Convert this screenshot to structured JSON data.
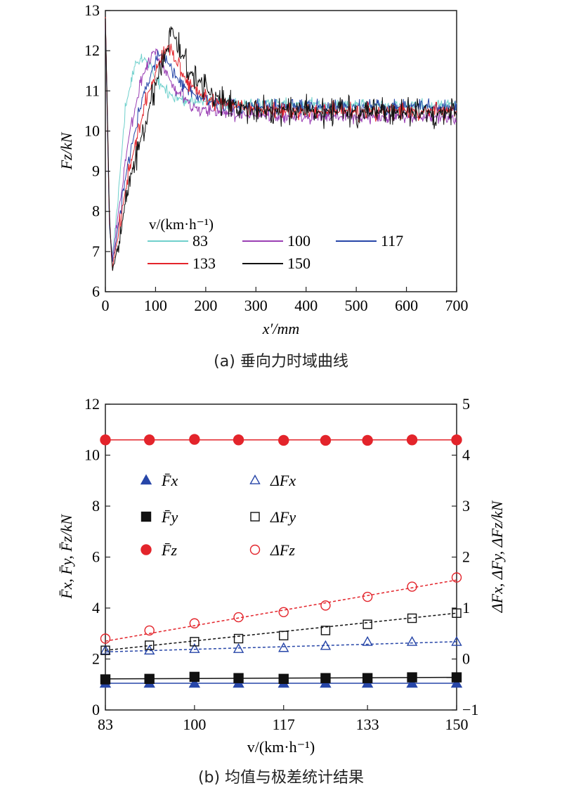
{
  "chart_data": [
    {
      "type": "line",
      "caption": "(a) 垂向力时域曲线",
      "xlabel": "x′/mm",
      "ylabel": "Fz/kN",
      "xlim": [
        0,
        700
      ],
      "ylim": [
        6,
        13
      ],
      "xticks": [
        "0",
        "100",
        "200",
        "300",
        "400",
        "500",
        "600",
        "700"
      ],
      "yticks": [
        "6",
        "7",
        "8",
        "9",
        "10",
        "11",
        "12",
        "13"
      ],
      "legend_title": "v/(km·h⁻¹)",
      "legend_placement": "lower-center",
      "grid": false,
      "series": [
        {
          "name": "83",
          "color": "#6fd0cc",
          "noise": 0.18,
          "x": [
            0,
            4,
            8,
            14,
            25,
            40,
            60,
            80,
            100,
            130,
            170,
            250,
            400,
            550,
            700
          ],
          "y": [
            12.8,
            10.2,
            7.6,
            6.9,
            8.3,
            10.6,
            11.7,
            11.8,
            11.3,
            10.9,
            10.75,
            10.7,
            10.7,
            10.65,
            10.65
          ]
        },
        {
          "name": "100",
          "color": "#9a3fb4",
          "noise": 0.2,
          "x": [
            0,
            4,
            8,
            14,
            25,
            45,
            70,
            95,
            110,
            140,
            180,
            260,
            400,
            550,
            700
          ],
          "y": [
            12.8,
            10.3,
            7.7,
            6.8,
            7.9,
            9.7,
            11.2,
            12.0,
            11.7,
            11.0,
            10.6,
            10.4,
            10.35,
            10.35,
            10.35
          ]
        },
        {
          "name": "117",
          "color": "#2746a8",
          "noise": 0.22,
          "x": [
            0,
            4,
            8,
            14,
            25,
            45,
            75,
            105,
            120,
            150,
            190,
            270,
            400,
            550,
            700
          ],
          "y": [
            12.8,
            10.3,
            7.7,
            6.7,
            7.6,
            9.2,
            10.9,
            11.9,
            11.8,
            11.2,
            10.8,
            10.6,
            10.6,
            10.6,
            10.6
          ]
        },
        {
          "name": "133",
          "color": "#e3242b",
          "noise": 0.28,
          "x": [
            0,
            4,
            8,
            14,
            25,
            45,
            80,
            110,
            125,
            160,
            200,
            280,
            400,
            550,
            700
          ],
          "y": [
            12.9,
            10.4,
            7.8,
            6.6,
            7.4,
            8.9,
            10.7,
            11.8,
            12.1,
            11.3,
            10.8,
            10.55,
            10.5,
            10.5,
            10.5
          ]
        },
        {
          "name": "150",
          "color": "#111111",
          "noise": 0.45,
          "x": [
            0,
            4,
            8,
            14,
            25,
            45,
            85,
            115,
            135,
            170,
            210,
            290,
            400,
            550,
            700
          ],
          "y": [
            12.8,
            10.5,
            7.9,
            6.5,
            7.1,
            8.6,
            10.5,
            11.8,
            12.4,
            11.5,
            10.9,
            10.5,
            10.5,
            10.45,
            10.45
          ]
        }
      ]
    },
    {
      "type": "scatter",
      "caption": "(b) 均值与极差统计结果",
      "xlabel": "v/(km·h⁻¹)",
      "ylabel_left": "F̄x, F̄y, F̄z/kN",
      "ylabel_right": "ΔFx, ΔFy, ΔFz/kN",
      "xlim": [
        83,
        150
      ],
      "ylim_left": [
        0,
        12
      ],
      "ylim_right": [
        -1,
        5
      ],
      "xticks": [
        "83",
        "100",
        "117",
        "133",
        "150"
      ],
      "yticks_left": [
        "0",
        "2",
        "4",
        "6",
        "8",
        "10",
        "12"
      ],
      "yticks_right": [
        "−1",
        "0",
        "1",
        "2",
        "3",
        "4",
        "5"
      ],
      "x": [
        83,
        91.4,
        100,
        108.4,
        117,
        125,
        133,
        141.5,
        150
      ],
      "legend_placement": "center-left",
      "series": [
        {
          "name": "F̄x",
          "marker": "triangle",
          "filled": true,
          "color": "#2746a8",
          "axis": "left",
          "values": [
            1.05,
            1.05,
            1.05,
            1.05,
            1.05,
            1.05,
            1.05,
            1.05,
            1.05
          ],
          "fit": [
            1.05,
            1.05
          ]
        },
        {
          "name": "F̄y",
          "marker": "square",
          "filled": true,
          "color": "#111111",
          "axis": "left",
          "values": [
            1.2,
            1.22,
            1.3,
            1.25,
            1.22,
            1.25,
            1.25,
            1.28,
            1.28
          ],
          "fit": [
            1.22,
            1.28
          ]
        },
        {
          "name": "F̄z",
          "marker": "circle",
          "filled": true,
          "color": "#e3242b",
          "axis": "left",
          "values": [
            10.6,
            10.6,
            10.62,
            10.6,
            10.58,
            10.58,
            10.58,
            10.6,
            10.6
          ],
          "fit": [
            10.6,
            10.6
          ]
        },
        {
          "name": "ΔFx",
          "marker": "triangle",
          "filled": false,
          "color": "#2746a8",
          "axis": "right",
          "values": [
            0.17,
            0.17,
            0.2,
            0.2,
            0.22,
            0.26,
            0.34,
            0.34,
            0.34
          ],
          "fit": [
            0.14,
            0.34
          ]
        },
        {
          "name": "ΔFy",
          "marker": "square",
          "filled": false,
          "color": "#111111",
          "axis": "right",
          "values": [
            0.17,
            0.27,
            0.34,
            0.4,
            0.46,
            0.56,
            0.68,
            0.8,
            0.9
          ],
          "fit": [
            0.17,
            0.9
          ]
        },
        {
          "name": "ΔFz",
          "marker": "circle",
          "filled": false,
          "color": "#e3242b",
          "axis": "right",
          "values": [
            0.4,
            0.56,
            0.7,
            0.82,
            0.92,
            1.05,
            1.22,
            1.42,
            1.6
          ],
          "fit": [
            0.35,
            1.55
          ]
        }
      ]
    }
  ]
}
